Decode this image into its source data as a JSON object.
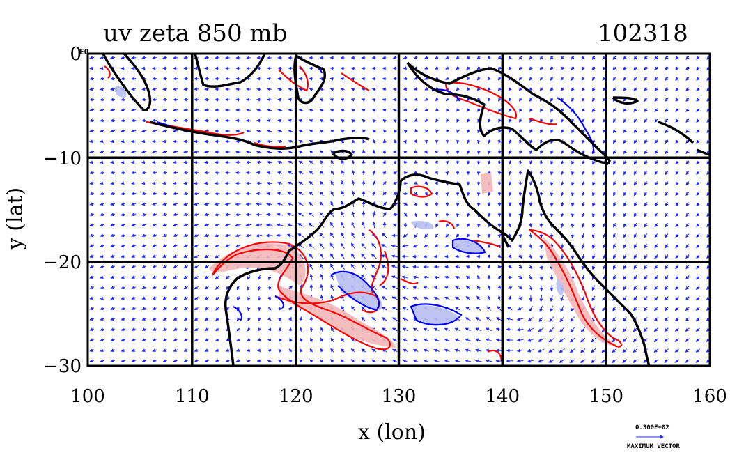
{
  "title": "uv zeta 850 mb",
  "date_code": "102318",
  "corner_label": "E0",
  "x_axis_label": "x (lon)",
  "y_axis_label": "y (lat)",
  "legend": {
    "value": "0.300E+02",
    "label": "MAXIMUM VECTOR"
  },
  "colors": {
    "coast": "#000000",
    "vectors": "#1f2bff",
    "positive_contour": "#ff0000",
    "negative_contour": "#0000ff",
    "positive_fill": "#f4b8b8",
    "negative_fill": "#b8bff2",
    "grid": "#000000"
  },
  "chart_data": {
    "type": "map",
    "xlim": [
      100,
      160
    ],
    "ylim": [
      -30,
      0
    ],
    "x_ticks": [
      "100",
      "110",
      "120",
      "130",
      "140",
      "150",
      "160"
    ],
    "y_ticks": [
      "0",
      "−10",
      "−20",
      "−30"
    ],
    "x_tick_values": [
      100,
      110,
      120,
      130,
      140,
      150,
      160
    ],
    "y_tick_values": [
      0,
      -10,
      -20,
      -30
    ],
    "grid": true,
    "fields": [
      "u-v wind vectors",
      "relative vorticity (zeta) contours"
    ],
    "level": "850 mb"
  }
}
